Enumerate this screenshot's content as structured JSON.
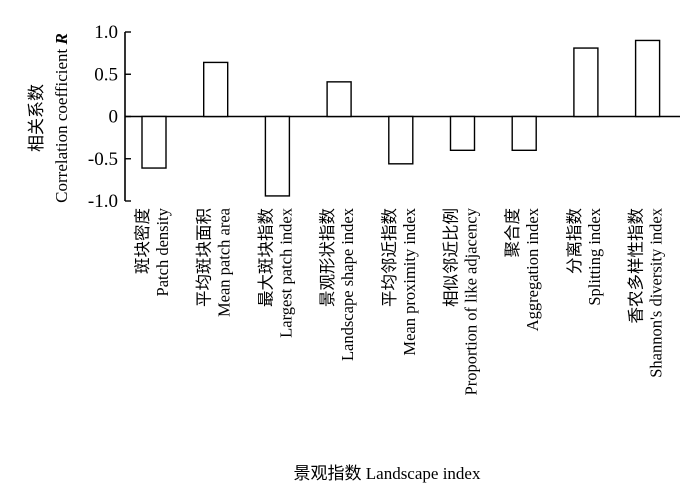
{
  "chart_data": {
    "type": "bar",
    "categories": [
      {
        "zh": "斑块密度",
        "en": "Patch density"
      },
      {
        "zh": "平均斑块面积",
        "en": "Mean patch area"
      },
      {
        "zh": "最大斑块指数",
        "en": "Largest patch index"
      },
      {
        "zh": "景观形状指数",
        "en": "Landscape shape index"
      },
      {
        "zh": "平均邻近指数",
        "en": "Mean proximity index"
      },
      {
        "zh": "相似邻近比例",
        "en": "Proportion of like adjacency"
      },
      {
        "zh": "聚合度",
        "en": "Aggregation index"
      },
      {
        "zh": "分离指数",
        "en": "Splitting index"
      },
      {
        "zh": "香农多样性指数",
        "en": "Shannon's diversity index"
      }
    ],
    "values": [
      -0.61,
      0.64,
      -0.94,
      0.41,
      -0.56,
      -0.4,
      -0.4,
      0.81,
      0.9
    ],
    "ylim": [
      -1.0,
      1.0
    ],
    "yticks": [
      "1.0",
      "0.5",
      "0",
      "-0.5",
      "-1.0"
    ],
    "ylabel_zh": "相关系数",
    "ylabel_en": "Correlation coefficient",
    "ylabel_symbol": "R",
    "xlabel": "景观指数 Landscape index",
    "grid": false
  }
}
